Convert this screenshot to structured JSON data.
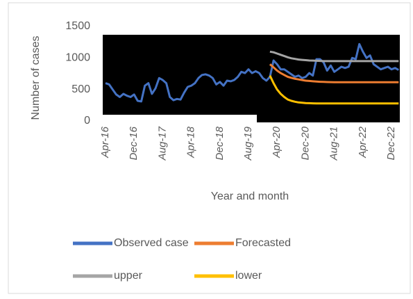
{
  "chart_data": {
    "type": "line",
    "ylabel": "Number of cases",
    "xlabel": "Year and month",
    "categories": [
      "Apr-16",
      null,
      null,
      null,
      null,
      null,
      null,
      null,
      "Dec-16",
      null,
      null,
      null,
      null,
      null,
      null,
      null,
      "Aug-17",
      null,
      null,
      null,
      null,
      null,
      null,
      null,
      "Apr-18",
      null,
      null,
      null,
      null,
      null,
      null,
      null,
      "Dec-18",
      null,
      null,
      null,
      null,
      null,
      null,
      null,
      "Aug-19",
      null,
      null,
      null,
      null,
      null,
      null,
      null,
      "Apr-20",
      null,
      null,
      null,
      null,
      null,
      null,
      null,
      "Dec-20",
      null,
      null,
      null,
      null,
      null,
      null,
      null,
      "Aug-21",
      null,
      null,
      null,
      null,
      null,
      null,
      null,
      "Apr-22",
      null,
      null,
      null,
      null,
      null,
      null,
      null,
      "Dec-22",
      null,
      null
    ],
    "ylim": [
      0,
      1500
    ],
    "yticks": [
      0,
      500,
      1000,
      1500
    ],
    "series": [
      {
        "name": "Observed case",
        "color": "#4472c4",
        "values": [
          600,
          580,
          500,
          420,
          380,
          430,
          400,
          380,
          420,
          320,
          310,
          560,
          600,
          430,
          520,
          680,
          650,
          600,
          380,
          330,
          350,
          340,
          450,
          540,
          560,
          600,
          680,
          730,
          740,
          720,
          680,
          580,
          620,
          560,
          640,
          630,
          650,
          700,
          780,
          760,
          820,
          760,
          790,
          760,
          680,
          640,
          700,
          960,
          900,
          820,
          820,
          780,
          740,
          700,
          720,
          680,
          700,
          760,
          720,
          980,
          980,
          930,
          800,
          880,
          780,
          820,
          860,
          840,
          860,
          1000,
          980,
          1220,
          1100,
          1000,
          1040,
          900,
          860,
          820,
          840,
          860,
          820,
          840,
          810
        ]
      },
      {
        "name": "Forecasted",
        "color": "#ed7d31",
        "values": [
          null,
          null,
          null,
          null,
          null,
          null,
          null,
          null,
          null,
          null,
          null,
          null,
          null,
          null,
          null,
          null,
          null,
          null,
          null,
          null,
          null,
          null,
          null,
          null,
          null,
          null,
          null,
          null,
          null,
          null,
          null,
          null,
          null,
          null,
          null,
          null,
          null,
          null,
          null,
          null,
          null,
          null,
          null,
          null,
          null,
          null,
          900,
          850,
          800,
          760,
          730,
          700,
          685,
          670,
          660,
          650,
          640,
          635,
          630,
          625,
          622,
          620,
          618,
          616,
          615,
          615,
          615,
          615,
          615,
          615,
          615,
          615,
          615,
          615,
          615,
          615,
          615,
          615,
          615,
          615,
          615,
          615,
          615
        ]
      },
      {
        "name": "upper",
        "color": "#a5a5a5",
        "values": [
          null,
          null,
          null,
          null,
          null,
          null,
          null,
          null,
          null,
          null,
          null,
          null,
          null,
          null,
          null,
          null,
          null,
          null,
          null,
          null,
          null,
          null,
          null,
          null,
          null,
          null,
          null,
          null,
          null,
          null,
          null,
          null,
          null,
          null,
          null,
          null,
          null,
          null,
          null,
          null,
          null,
          null,
          null,
          null,
          null,
          null,
          1100,
          1090,
          1070,
          1050,
          1030,
          1010,
          995,
          985,
          975,
          970,
          965,
          960,
          958,
          955,
          953,
          950,
          950,
          950,
          950,
          950,
          950,
          950,
          950,
          950,
          950,
          950,
          950,
          950,
          950,
          950,
          950,
          950,
          950,
          950,
          950,
          950,
          950
        ]
      },
      {
        "name": "lower",
        "color": "#ffc000",
        "values": [
          null,
          null,
          null,
          null,
          null,
          null,
          null,
          null,
          null,
          null,
          null,
          null,
          null,
          null,
          null,
          null,
          null,
          null,
          null,
          null,
          null,
          null,
          null,
          null,
          null,
          null,
          null,
          null,
          null,
          null,
          null,
          null,
          null,
          null,
          null,
          null,
          null,
          null,
          null,
          null,
          null,
          null,
          null,
          null,
          null,
          null,
          720,
          600,
          500,
          430,
          380,
          340,
          320,
          305,
          295,
          290,
          285,
          282,
          280,
          278,
          278,
          278,
          278,
          278,
          278,
          278,
          278,
          278,
          278,
          278,
          278,
          278,
          278,
          278,
          278,
          278,
          278,
          278,
          278,
          278,
          278,
          278,
          278
        ]
      }
    ]
  }
}
